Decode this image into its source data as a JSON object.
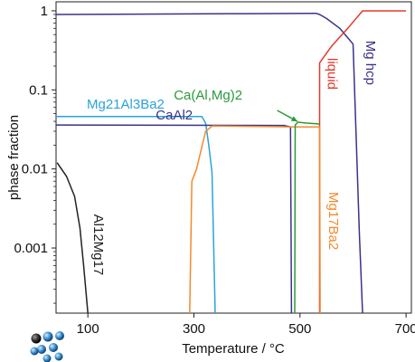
{
  "chart_data": {
    "type": "line",
    "xlabel": "Temperature / °C",
    "ylabel": "phase fraction",
    "xlim": [
      40,
      710
    ],
    "ylim": [
      0.00015,
      1.3
    ],
    "y_scale": "log",
    "grid": false,
    "x_ticks": [
      {
        "value": 100,
        "label": "100"
      },
      {
        "value": 300,
        "label": "300"
      },
      {
        "value": 500,
        "label": "500"
      },
      {
        "value": 700,
        "label": "700"
      }
    ],
    "y_ticks": [
      {
        "value": 1,
        "label": "1"
      },
      {
        "value": 0.1,
        "label": "0.1"
      },
      {
        "value": 0.01,
        "label": "0.01"
      },
      {
        "value": 0.001,
        "label": "0.001"
      }
    ],
    "series": [
      {
        "name": "Mg hcp",
        "color": "#3a3289",
        "points": [
          [
            40,
            0.9
          ],
          [
            400,
            0.92
          ],
          [
            530,
            0.93
          ],
          [
            537,
            0.9
          ],
          [
            550,
            0.8
          ],
          [
            575,
            0.6
          ],
          [
            600,
            0.38
          ],
          [
            612,
            0.0015
          ],
          [
            618,
            0.00015
          ]
        ],
        "label": {
          "text": "Mg hcp",
          "x": 625,
          "y": 0.22,
          "rotate": 90,
          "anchor": "middle"
        }
      },
      {
        "name": "liquid",
        "color": "#e03a2c",
        "points": [
          [
            537,
            0.00015
          ],
          [
            537,
            0.22
          ],
          [
            560,
            0.36
          ],
          [
            590,
            0.6
          ],
          [
            618,
            1.0
          ],
          [
            700,
            1.0
          ]
        ],
        "label": {
          "text": "liquid",
          "x": 552,
          "y": 0.16,
          "rotate": 90,
          "anchor": "middle"
        }
      },
      {
        "name": "Mg21Al3Ba2",
        "color": "#2ba3d8",
        "points": [
          [
            40,
            0.046
          ],
          [
            315,
            0.046
          ],
          [
            322,
            0.038
          ],
          [
            328,
            0.02
          ],
          [
            334,
            0.009
          ],
          [
            340,
            0.00015
          ]
        ],
        "label": {
          "text": "Mg21Al3Ba2",
          "x": 98,
          "y": 0.058,
          "rotate": 0,
          "anchor": "start"
        }
      },
      {
        "name": "CaAl2",
        "color": "#3a3289",
        "points": [
          [
            40,
            0.036
          ],
          [
            470,
            0.0355
          ],
          [
            482,
            0.034
          ],
          [
            484,
            0.00015
          ]
        ],
        "label": {
          "text": "CaAl2",
          "x": 228,
          "y": 0.042,
          "rotate": 0,
          "anchor": "start"
        }
      },
      {
        "name": "Mg17Ba2",
        "color": "#f28a2e",
        "points": [
          [
            292,
            0.00015
          ],
          [
            296,
            0.007
          ],
          [
            305,
            0.01
          ],
          [
            322,
            0.03
          ],
          [
            335,
            0.035
          ],
          [
            490,
            0.034
          ],
          [
            537,
            0.034
          ],
          [
            538,
            0.00015
          ]
        ],
        "label": {
          "text": "Mg17Ba2",
          "x": 555,
          "y": 0.0022,
          "rotate": 90,
          "anchor": "middle"
        }
      },
      {
        "name": "Ca(Al,Mg)2",
        "color": "#2a9a3a",
        "points": [
          [
            490,
            0.00015
          ],
          [
            491,
            0.036
          ],
          [
            496,
            0.039
          ],
          [
            512,
            0.038
          ],
          [
            537,
            0.037
          ]
        ],
        "label": {
          "text": "Ca(Al,Mg)2",
          "x": 262,
          "y": 0.075,
          "rotate": 0,
          "anchor": "start"
        }
      },
      {
        "name": "Al12Mg17",
        "color": "#222222",
        "points": [
          [
            42,
            0.012
          ],
          [
            60,
            0.008
          ],
          [
            75,
            0.0045
          ],
          [
            85,
            0.0018
          ],
          [
            92,
            0.0006
          ],
          [
            100,
            0.00015
          ]
        ],
        "label": {
          "text": "Al12Mg17",
          "x": 112,
          "y": 0.0011,
          "rotate": 90,
          "anchor": "middle"
        }
      }
    ],
    "annotations": [
      {
        "text": "Ca(Al,Mg)2",
        "arrow_from": [
          457,
          0.055
        ],
        "arrow_to": [
          495,
          0.04
        ],
        "color": "#2a9a3a"
      }
    ]
  },
  "logo": {
    "name": "logo-icon"
  }
}
